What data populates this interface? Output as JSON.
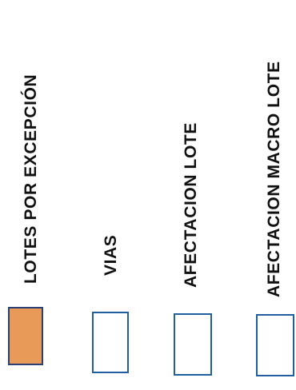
{
  "legend": {
    "items": [
      {
        "label": "LOTES POR EXCEPCIÓN",
        "fill": "#e89a58",
        "border": "#2a3f73"
      },
      {
        "label": "VIAS",
        "fill": "#ffffff",
        "border": "#1f5f9e"
      },
      {
        "label": "AFECTACION LOTE",
        "fill": "#ffffff",
        "border": "#1f5f9e"
      },
      {
        "label": "AFECTACION MACRO LOTE",
        "fill": "#ffffff",
        "border": "#1f5f9e"
      }
    ]
  }
}
